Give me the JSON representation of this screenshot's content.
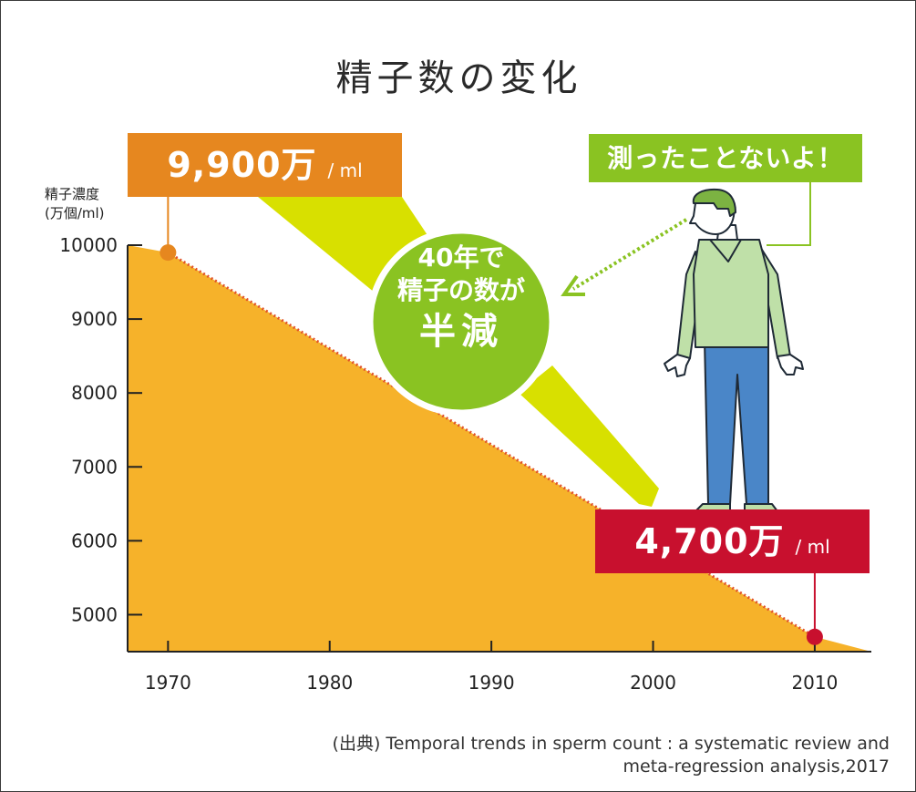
{
  "colors": {
    "area_fill": "#f6b22a",
    "trend_line": "#e0522a",
    "callout_orange": "#e6871f",
    "callout_red": "#c8102e",
    "green": "#8ac322",
    "spotlight": "#d8e000",
    "man_shirt": "#bfe0a8",
    "man_pants": "#4a86c8",
    "man_hair": "#7cb342"
  },
  "title": "精子数の変化",
  "y_axis_title": [
    "精子濃度",
    "(万個/ml)"
  ],
  "callouts": {
    "start": {
      "value": "9,900万",
      "unit": "/ ml"
    },
    "end": {
      "value": "4,700万",
      "unit": "/ ml"
    }
  },
  "speech_bubble": "測ったことないよ！",
  "circle": {
    "line1": "40年で",
    "line2": "精子の数が",
    "line3": "半減"
  },
  "source": {
    "line1": "(出典) Temporal trends in sperm count : a systematic review and",
    "line2": "meta-regression analysis,2017"
  },
  "icons": [
    "standing-man-icon",
    "dotted-arrow-icon"
  ],
  "chart_data": {
    "type": "area",
    "title": "精子数の変化",
    "ylabel": "精子濃度 (万個/ml)",
    "xlabel": "",
    "x_ticks": [
      1970,
      1980,
      1990,
      2000,
      2010
    ],
    "y_ticks": [
      5000,
      6000,
      7000,
      8000,
      9000,
      10000
    ],
    "xlim": [
      1967.5,
      2013.5
    ],
    "ylim": [
      4500,
      10000
    ],
    "grid": false,
    "series": [
      {
        "values": [
          [
            1967.5,
            10000
          ],
          [
            1970,
            9900
          ],
          [
            2010,
            4700
          ],
          [
            2013.5,
            4500
          ]
        ]
      }
    ],
    "highlight_points": [
      {
        "x": 1970,
        "y": 9900,
        "label": "9,900万 / ml"
      },
      {
        "x": 2010,
        "y": 4700,
        "label": "4,700万 / ml"
      }
    ]
  }
}
